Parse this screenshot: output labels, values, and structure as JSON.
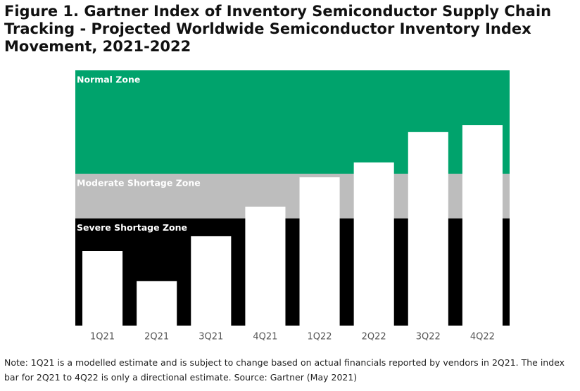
{
  "chart_data": {
    "type": "bar",
    "title": "Figure 1. Gartner Index of Inventory Semiconductor Supply Chain Tracking - Projected Worldwide Semiconductor Inventory Index Movement, 2021-2022",
    "categories": [
      "1Q21",
      "2Q21",
      "3Q21",
      "4Q21",
      "1Q22",
      "2Q22",
      "3Q22",
      "4Q22"
    ],
    "values": [
      29.2,
      17.4,
      35,
      46.6,
      58.1,
      63.9,
      75.8,
      78.5
    ],
    "color": "#ffffff",
    "ylim": [
      0,
      100
    ],
    "zones": [
      {
        "name": "Severe Shortage Zone",
        "from": 0,
        "to": 42,
        "color": "#000000"
      },
      {
        "name": "Moderate Shortage Zone",
        "from": 42,
        "to": 59.5,
        "color": "#bdbdbd"
      },
      {
        "name": "Normal Zone",
        "from": 59.5,
        "to": 100,
        "color": "#00a36c"
      }
    ],
    "note": "Note: 1Q21 is a modelled estimate and is subject to change based on actual financials reported by vendors in 2Q21. The index bar for 2Q21 to 4Q22 is only a directional estimate. Source: Gartner (May 2021)"
  }
}
